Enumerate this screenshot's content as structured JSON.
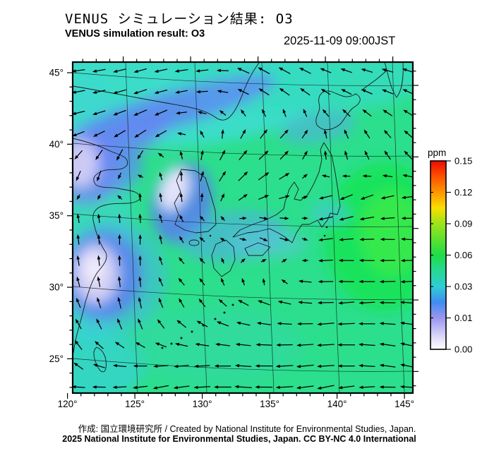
{
  "header": {
    "title_jp": "VENUS シミュレーション結果: O3",
    "title_en": "VENUS simulation result: O3",
    "timestamp": "2025-11-09 09:00JST"
  },
  "footer": {
    "line1": "作成: 国立環境研究所 / Created by National Institute for Environmental Studies, Japan.",
    "line2": "2025 National Institute for Environmental Studies, Japan. CC BY-NC 4.0 International"
  },
  "chart_data": {
    "type": "heatmap",
    "subtype": "geographic-field-with-wind-vectors",
    "variable": "O3",
    "units": "ppm",
    "lon_range": [
      120,
      145
    ],
    "lat_range": [
      23,
      46
    ],
    "grid_interval_deg": 5,
    "minor_tick_deg": 1,
    "lon_tick_labels": [
      "120°",
      "125°",
      "130°",
      "135°",
      "140°",
      "145°"
    ],
    "lat_tick_labels": [
      "45°",
      "40°",
      "35°",
      "30°",
      "25°"
    ],
    "colorbar": {
      "label": "ppm",
      "tick_labels": [
        "0.15",
        "0.12",
        "0.09",
        "0.06",
        "0.03",
        "0.01",
        "0.00"
      ],
      "tick_values": [
        0.15,
        0.12,
        0.09,
        0.06,
        0.03,
        0.01,
        0.0
      ],
      "scale_note": "ticks evenly spaced, non-linear values",
      "gradient": [
        {
          "f": 0.0,
          "c": "#ee0b00"
        },
        {
          "f": 0.08,
          "c": "#fb4f00"
        },
        {
          "f": 0.167,
          "c": "#ff9600"
        },
        {
          "f": 0.25,
          "c": "#f8df00"
        },
        {
          "f": 0.333,
          "c": "#9ce418"
        },
        {
          "f": 0.5,
          "c": "#1edd47"
        },
        {
          "f": 0.583,
          "c": "#27d893"
        },
        {
          "f": 0.667,
          "c": "#2fcdd6"
        },
        {
          "f": 0.75,
          "c": "#3f8cf0"
        },
        {
          "f": 0.833,
          "c": "#9b96f0"
        },
        {
          "f": 0.93,
          "c": "#d9d7f8"
        },
        {
          "f": 1.0,
          "c": "#ffffff"
        }
      ]
    },
    "field_summary": [
      {
        "region": "most of domain (Pacific, Sea of Japan, Japan)",
        "o3_ppm": 0.05
      },
      {
        "region": "northern band / Sea of Okhotsk and NE China (cyan)",
        "o3_ppm": 0.04
      },
      {
        "region": "diagonal band NE China toward Tatar Strait (blue)",
        "o3_ppm": 0.02
      },
      {
        "region": "Bohai Bay coast near 40N (pale violet core)",
        "o3_ppm": 0.005
      },
      {
        "region": "Korean peninsula plume (blue with pale core)",
        "o3_ppm": 0.01
      },
      {
        "region": "Korea Strait / western Japan (cyan-blue)",
        "o3_ppm": 0.03
      },
      {
        "region": "Yangtze delta near 30N (pale violet core, blue ring)",
        "o3_ppm": 0.005
      },
      {
        "region": "Taiwan Strait and bottom-left (cyan)",
        "o3_ppm": 0.035
      },
      {
        "region": "Pacific east of Japan 140-145E 30-37N (bright green)",
        "o3_ppm": 0.055
      }
    ],
    "wind": {
      "angle_convention": "degrees CCW from east; arrows point toward this direction (90 = screen up)",
      "grid_note": "coarse 12x13 sample of the plotted vector field, rows north to south",
      "angles_deg": [
        [
          188,
          192,
          196,
          192,
          188,
          185,
          155,
          150,
          152,
          158,
          162,
          165,
          162
        ],
        [
          192,
          196,
          200,
          196,
          190,
          168,
          152,
          142,
          138,
          142,
          150,
          155,
          152
        ],
        [
          198,
          204,
          210,
          214,
          150,
          95,
          62,
          50,
          45,
          105,
          118,
          130,
          140
        ],
        [
          235,
          245,
          252,
          120,
          85,
          62,
          48,
          40,
          52,
          95,
          108,
          120,
          132
        ],
        [
          255,
          258,
          95,
          95,
          88,
          60,
          42,
          28,
          15,
          195,
          208,
          200,
          190
        ],
        [
          100,
          96,
          92,
          108,
          122,
          145,
          5,
          348,
          8,
          192,
          196,
          186,
          181
        ],
        [
          96,
          92,
          86,
          102,
          132,
          155,
          342,
          332,
          350,
          186,
          181,
          179,
          176
        ],
        [
          102,
          96,
          90,
          118,
          142,
          105,
          82,
          62,
          172,
          181,
          176,
          181,
          186
        ],
        [
          112,
          106,
          100,
          112,
          122,
          132,
          152,
          162,
          172,
          181,
          186,
          181,
          176
        ],
        [
          122,
          116,
          112,
          132,
          152,
          162,
          172,
          176,
          181,
          186,
          181,
          176,
          171
        ],
        [
          132,
          168,
          176,
          181,
          186,
          181,
          176,
          181,
          186,
          181,
          176,
          171,
          166
        ],
        [
          176,
          181,
          186,
          191,
          186,
          181,
          176,
          181,
          186,
          191,
          186,
          181,
          176
        ]
      ],
      "strength": [
        [
          1.0,
          1.0,
          1.0,
          1.0,
          1.0,
          0.9,
          1.0,
          1.0,
          1.0,
          0.9,
          0.9,
          0.9,
          0.9
        ],
        [
          1.0,
          1.0,
          1.1,
          1.0,
          0.9,
          0.8,
          0.9,
          0.9,
          0.9,
          0.8,
          0.9,
          0.9,
          0.9
        ],
        [
          1.0,
          1.0,
          1.1,
          1.1,
          0.7,
          0.7,
          0.8,
          0.9,
          0.9,
          0.7,
          0.8,
          0.8,
          0.8
        ],
        [
          0.9,
          1.0,
          1.0,
          0.7,
          0.8,
          0.9,
          1.0,
          1.0,
          0.8,
          0.7,
          0.7,
          0.8,
          0.9
        ],
        [
          0.8,
          0.8,
          0.6,
          0.7,
          0.8,
          0.9,
          1.0,
          1.0,
          0.9,
          1.0,
          1.0,
          1.0,
          1.0
        ],
        [
          0.7,
          0.7,
          0.7,
          0.7,
          0.6,
          0.5,
          0.6,
          0.7,
          0.7,
          1.1,
          1.1,
          1.1,
          1.0
        ],
        [
          0.8,
          0.8,
          0.8,
          0.7,
          0.6,
          0.5,
          0.6,
          0.7,
          0.8,
          1.1,
          1.1,
          1.1,
          1.1
        ],
        [
          0.8,
          0.8,
          0.8,
          0.7,
          0.7,
          0.6,
          0.6,
          0.7,
          0.9,
          1.1,
          1.2,
          1.2,
          1.1
        ],
        [
          0.8,
          0.9,
          0.9,
          0.8,
          0.8,
          0.8,
          0.9,
          1.0,
          1.0,
          1.2,
          1.2,
          1.2,
          1.2
        ],
        [
          0.9,
          0.9,
          0.9,
          0.9,
          1.0,
          1.0,
          1.1,
          1.1,
          1.2,
          1.3,
          1.3,
          1.2,
          1.2
        ],
        [
          0.9,
          1.0,
          1.0,
          1.1,
          1.1,
          1.2,
          1.2,
          1.3,
          1.3,
          1.3,
          1.3,
          1.2,
          1.2
        ],
        [
          1.0,
          1.0,
          1.1,
          1.2,
          1.2,
          1.3,
          1.3,
          1.3,
          1.3,
          1.3,
          1.2,
          1.2,
          1.2
        ]
      ]
    }
  }
}
